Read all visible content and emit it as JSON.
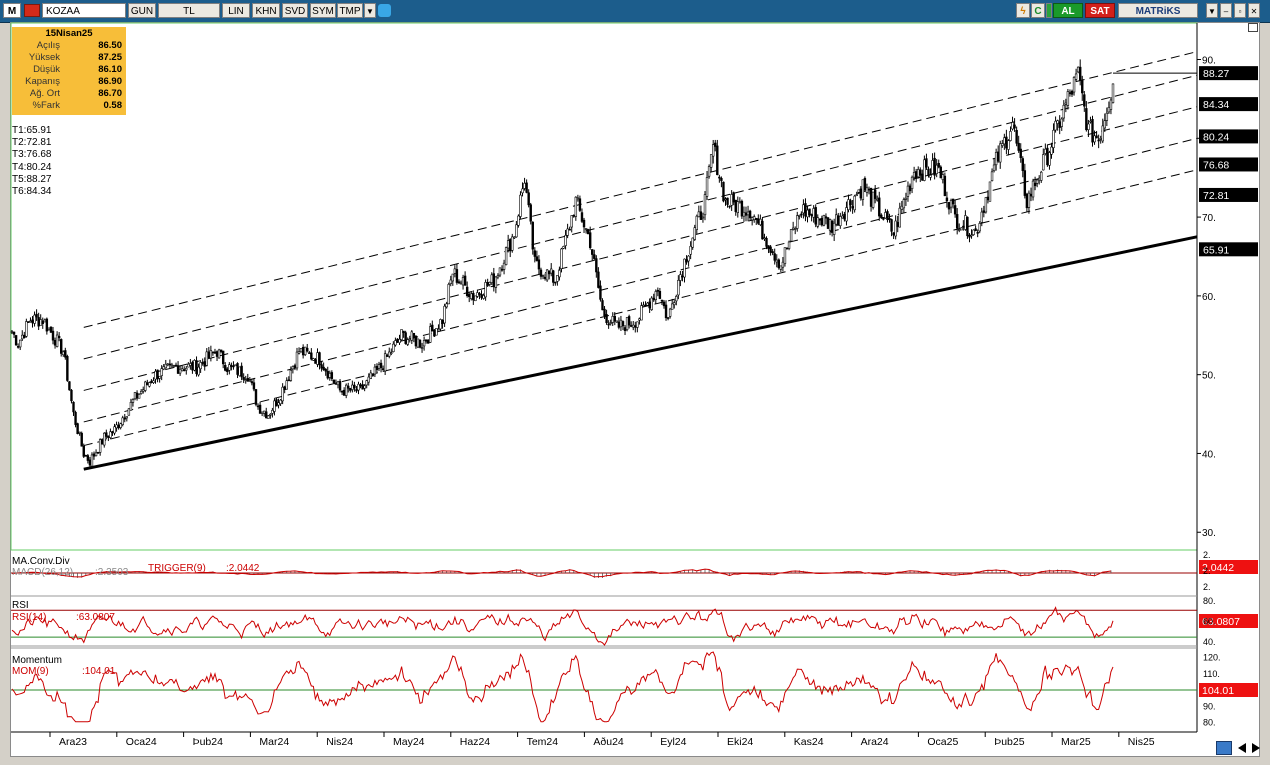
{
  "toolbar": {
    "logo_letter": "M",
    "symbol": "KOZAA",
    "buttons": [
      "GUN",
      "TL",
      "LIN",
      "KHN",
      "SVD",
      "SYM",
      "TMP"
    ],
    "buy_label": "AL",
    "sell_label": "SAT",
    "brand": "MATRiKS",
    "icon_c": "C",
    "colors": {
      "bar": "#1c5d8c",
      "buy": "#1a9a2a",
      "sell": "#d2201a"
    }
  },
  "info": {
    "date": "15Nisan25",
    "rows": [
      {
        "label": "Açılış",
        "value": "86.50"
      },
      {
        "label": "Yüksek",
        "value": "87.25"
      },
      {
        "label": "Düşük",
        "value": "86.10"
      },
      {
        "label": "Kapanış",
        "value": "86.90"
      },
      {
        "label": "Ağ. Ort",
        "value": "86.70"
      },
      {
        "label": "%Fark",
        "value": "0.58"
      }
    ]
  },
  "targets": [
    {
      "label": "T1:65.91",
      "value": 65.91
    },
    {
      "label": "T2:72.81",
      "value": 72.81
    },
    {
      "label": "T3:76.68",
      "value": 76.68
    },
    {
      "label": "T4:80.24",
      "value": 80.24
    },
    {
      "label": "T5:88.27",
      "value": 88.27
    },
    {
      "label": "T6:84.34",
      "value": 84.34
    }
  ],
  "chart_data": [
    {
      "type": "candlestick",
      "symbol": "KOZAA",
      "ylim": [
        28,
        94
      ],
      "y_ticks": [
        30,
        40,
        50,
        60,
        70,
        80,
        90
      ],
      "y_tick_labels": [
        "30.",
        "40.",
        "50.",
        "60.",
        "70.",
        "80.",
        "90."
      ],
      "x_tick_labels": [
        "Ara23",
        "Oca24",
        "Þub24",
        "Mar24",
        "Nis24",
        "May24",
        "Haz24",
        "Tem24",
        "Aðu24",
        "Eyl24",
        "Eki24",
        "Kas24",
        "Ara24",
        "Oca25",
        "Þub25",
        "Mar25",
        "Nis25"
      ],
      "price_tags": [
        {
          "label": "88.27",
          "value": 88.27
        },
        {
          "label": "84.34",
          "value": 84.34
        },
        {
          "label": "80.24",
          "value": 80.24
        },
        {
          "label": "76.68",
          "value": 76.68
        },
        {
          "label": "72.81",
          "value": 72.81
        },
        {
          "label": "65.91",
          "value": 65.91
        }
      ],
      "anchors": [
        [
          0,
          55.5
        ],
        [
          3,
          54
        ],
        [
          9,
          57
        ],
        [
          15,
          57
        ],
        [
          20,
          55
        ],
        [
          25,
          53
        ],
        [
          30,
          45
        ],
        [
          35,
          40
        ],
        [
          38,
          39
        ],
        [
          45,
          42
        ],
        [
          50,
          43
        ],
        [
          60,
          47
        ],
        [
          70,
          50
        ],
        [
          80,
          51
        ],
        [
          90,
          51
        ],
        [
          100,
          53
        ],
        [
          105,
          51
        ],
        [
          115,
          50
        ],
        [
          120,
          46
        ],
        [
          125,
          45
        ],
        [
          130,
          47
        ],
        [
          140,
          53
        ],
        [
          150,
          52
        ],
        [
          160,
          48
        ],
        [
          170,
          48
        ],
        [
          180,
          51
        ],
        [
          190,
          55
        ],
        [
          200,
          54
        ],
        [
          210,
          57
        ],
        [
          215,
          63
        ],
        [
          225,
          60
        ],
        [
          235,
          62
        ],
        [
          245,
          68
        ],
        [
          250,
          75
        ],
        [
          255,
          64
        ],
        [
          265,
          62
        ],
        [
          275,
          72
        ],
        [
          282,
          67
        ],
        [
          288,
          58
        ],
        [
          295,
          56
        ],
        [
          305,
          57
        ],
        [
          315,
          61
        ],
        [
          320,
          57
        ],
        [
          325,
          62
        ],
        [
          330,
          66
        ],
        [
          338,
          72
        ],
        [
          342,
          79
        ],
        [
          348,
          72
        ],
        [
          360,
          71
        ],
        [
          375,
          64
        ],
        [
          385,
          71
        ],
        [
          400,
          69
        ],
        [
          415,
          74
        ],
        [
          430,
          68
        ],
        [
          440,
          76
        ],
        [
          452,
          76
        ],
        [
          460,
          70
        ],
        [
          470,
          68
        ],
        [
          480,
          77
        ],
        [
          488,
          82
        ],
        [
          495,
          72
        ],
        [
          505,
          78
        ],
        [
          515,
          85
        ],
        [
          520,
          88
        ],
        [
          525,
          81
        ],
        [
          530,
          80
        ],
        [
          537,
          86.9
        ]
      ],
      "trend_support": [
        [
          35,
          38
        ],
        [
          537,
          67.5
        ]
      ],
      "channel_dashed": [
        [
          [
            35,
            56
          ],
          [
            537,
            91
          ]
        ],
        [
          [
            35,
            52
          ],
          [
            537,
            88
          ]
        ],
        [
          [
            35,
            48
          ],
          [
            537,
            84
          ]
        ],
        [
          [
            35,
            44
          ],
          [
            537,
            80
          ]
        ],
        [
          [
            35,
            41
          ],
          [
            537,
            76
          ]
        ]
      ]
    },
    {
      "type": "line",
      "title": "MA.Conv.Div",
      "series": [
        {
          "name": "MACD(26,12)",
          "label": ":2.3503",
          "last": 2.3503
        },
        {
          "name": "TRIGGER(9)",
          "label": ":2.0442",
          "last": 2.0442
        }
      ],
      "value_tag": "2.0442",
      "tick_labels": [
        "2.",
        "2.",
        "2."
      ]
    },
    {
      "type": "line",
      "title": "RSI",
      "series": [
        {
          "name": "RSI(14)",
          "label": ":63.0807",
          "last": 63.0807
        }
      ],
      "ylim": [
        35,
        82
      ],
      "reference_lines": [
        70,
        30
      ],
      "tick_labels": [
        "80.",
        "60.",
        "40."
      ],
      "value_tag": "63.0807"
    },
    {
      "type": "line",
      "title": "Momentum",
      "series": [
        {
          "name": "MOM(9)",
          "label": ":104.01",
          "last": 104.01
        }
      ],
      "ylim": [
        78,
        124
      ],
      "reference_lines": [
        100
      ],
      "tick_labels": [
        "120.",
        "110.",
        "90.",
        "80."
      ],
      "value_tag": "104.01"
    }
  ]
}
